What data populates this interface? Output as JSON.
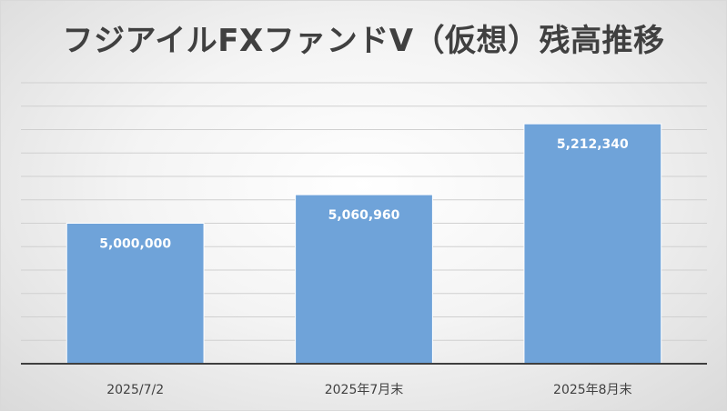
{
  "chart_data": {
    "type": "bar",
    "title": "フジアイルFXファンドⅤ（仮想）残高推移",
    "categories": [
      "2025/7/2",
      "2025年7月末",
      "2025年8月末"
    ],
    "values": [
      5000000,
      5060960,
      5212340
    ],
    "data_labels": [
      "5,000,000",
      "5,060,960",
      "5,212,340"
    ],
    "ylim": [
      4700000,
      5300000
    ],
    "y_tick_step": 50000,
    "grid": true,
    "y_axis_labels_visible": false,
    "legend": "none",
    "colors": {
      "bar_fill": "#6fa3d9",
      "bar_edge": "#ffffff",
      "gridline": "#d0d0d0",
      "axis": "#3f3f3f",
      "title": "#404040",
      "label": "#ffffff"
    }
  }
}
